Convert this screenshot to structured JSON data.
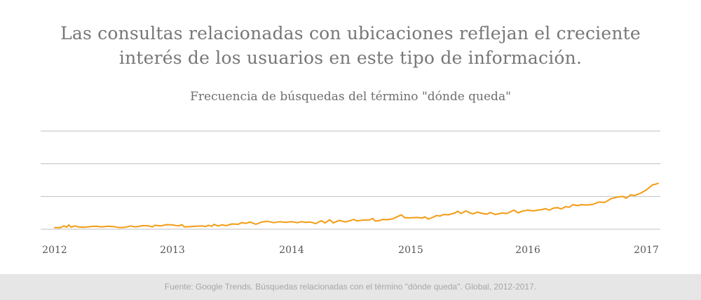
{
  "headline": {
    "line1": "Las consultas relacionadas con ubicaciones reflejan el creciente",
    "line2": "interés de los usuarios en este tipo de información."
  },
  "footer": {
    "source": "Fuente: Google Trends. Búsquedas relacionadas con el término \"dónde queda\". Global, 2012-2017."
  },
  "colors": {
    "line": "#f39c12",
    "grid": "#bfbfbf",
    "text": "#777777",
    "footer_bg": "#e6e6e6"
  },
  "chart_data": {
    "type": "line",
    "title": "Frecuencia de búsquedas del término \"dónde queda\"",
    "xlabel": "",
    "ylabel": "",
    "x_tick_labels": [
      "2012",
      "2013",
      "2014",
      "2015",
      "2016",
      "2017"
    ],
    "x_range": [
      2012.0,
      2017.1
    ],
    "y_range": [
      0,
      30
    ],
    "grid": "horizontal",
    "series": [
      {
        "values": [
          [
            2012.0,
            0.5
          ],
          [
            2012.05,
            0.5
          ],
          [
            2012.08,
            1.0
          ],
          [
            2012.1,
            0.6
          ],
          [
            2012.12,
            1.3
          ],
          [
            2012.14,
            0.6
          ],
          [
            2012.17,
            1.0
          ],
          [
            2012.2,
            0.7
          ],
          [
            2012.25,
            0.6
          ],
          [
            2012.3,
            0.8
          ],
          [
            2012.35,
            0.9
          ],
          [
            2012.4,
            0.7
          ],
          [
            2012.45,
            0.9
          ],
          [
            2012.5,
            0.8
          ],
          [
            2012.55,
            0.5
          ],
          [
            2012.6,
            0.6
          ],
          [
            2012.65,
            1.0
          ],
          [
            2012.68,
            0.7
          ],
          [
            2012.72,
            0.9
          ],
          [
            2012.75,
            1.1
          ],
          [
            2012.8,
            1.0
          ],
          [
            2012.83,
            0.7
          ],
          [
            2012.85,
            1.2
          ],
          [
            2012.9,
            1.0
          ],
          [
            2012.95,
            1.4
          ],
          [
            2013.0,
            1.3
          ],
          [
            2013.05,
            1.0
          ],
          [
            2013.08,
            1.4
          ],
          [
            2013.1,
            0.7
          ],
          [
            2013.15,
            0.8
          ],
          [
            2013.2,
            0.9
          ],
          [
            2013.25,
            1.0
          ],
          [
            2013.28,
            0.8
          ],
          [
            2013.3,
            1.2
          ],
          [
            2013.33,
            0.9
          ],
          [
            2013.35,
            1.5
          ],
          [
            2013.38,
            1.0
          ],
          [
            2013.42,
            1.3
          ],
          [
            2013.45,
            1.1
          ],
          [
            2013.5,
            1.6
          ],
          [
            2013.55,
            1.5
          ],
          [
            2013.58,
            2.0
          ],
          [
            2013.62,
            1.8
          ],
          [
            2013.65,
            2.2
          ],
          [
            2013.7,
            1.5
          ],
          [
            2013.75,
            2.2
          ],
          [
            2013.8,
            2.4
          ],
          [
            2013.85,
            2.0
          ],
          [
            2013.9,
            2.3
          ],
          [
            2013.95,
            2.1
          ],
          [
            2014.0,
            2.3
          ],
          [
            2014.05,
            2.0
          ],
          [
            2014.08,
            2.3
          ],
          [
            2014.12,
            2.1
          ],
          [
            2014.15,
            2.2
          ],
          [
            2014.18,
            2.0
          ],
          [
            2014.2,
            1.7
          ],
          [
            2014.25,
            2.6
          ],
          [
            2014.28,
            1.9
          ],
          [
            2014.32,
            2.9
          ],
          [
            2014.35,
            1.9
          ],
          [
            2014.4,
            2.7
          ],
          [
            2014.45,
            2.2
          ],
          [
            2014.5,
            2.7
          ],
          [
            2014.52,
            3.0
          ],
          [
            2014.55,
            2.5
          ],
          [
            2014.6,
            2.8
          ],
          [
            2014.65,
            2.8
          ],
          [
            2014.68,
            3.3
          ],
          [
            2014.7,
            2.5
          ],
          [
            2014.73,
            2.6
          ],
          [
            2014.77,
            3.0
          ],
          [
            2014.8,
            2.9
          ],
          [
            2014.85,
            3.2
          ],
          [
            2014.88,
            3.7
          ],
          [
            2014.92,
            4.4
          ],
          [
            2014.95,
            3.5
          ],
          [
            2015.0,
            3.5
          ],
          [
            2015.05,
            3.6
          ],
          [
            2015.1,
            3.4
          ],
          [
            2015.12,
            3.8
          ],
          [
            2015.15,
            3.1
          ],
          [
            2015.2,
            3.8
          ],
          [
            2015.22,
            4.2
          ],
          [
            2015.25,
            4.0
          ],
          [
            2015.28,
            4.5
          ],
          [
            2015.32,
            4.4
          ],
          [
            2015.35,
            4.7
          ],
          [
            2015.38,
            5.0
          ],
          [
            2015.4,
            5.5
          ],
          [
            2015.43,
            4.8
          ],
          [
            2015.47,
            5.6
          ],
          [
            2015.5,
            5.1
          ],
          [
            2015.53,
            4.7
          ],
          [
            2015.57,
            5.2
          ],
          [
            2015.6,
            4.9
          ],
          [
            2015.65,
            4.6
          ],
          [
            2015.68,
            5.1
          ],
          [
            2015.72,
            4.5
          ],
          [
            2015.75,
            4.7
          ],
          [
            2015.78,
            5.0
          ],
          [
            2015.82,
            4.8
          ],
          [
            2015.85,
            5.3
          ],
          [
            2015.88,
            5.8
          ],
          [
            2015.92,
            5.0
          ],
          [
            2015.95,
            5.5
          ],
          [
            2016.0,
            5.8
          ],
          [
            2016.05,
            5.6
          ],
          [
            2016.08,
            5.8
          ],
          [
            2016.12,
            6.0
          ],
          [
            2016.15,
            6.3
          ],
          [
            2016.18,
            5.8
          ],
          [
            2016.22,
            6.5
          ],
          [
            2016.25,
            6.6
          ],
          [
            2016.28,
            6.2
          ],
          [
            2016.32,
            6.9
          ],
          [
            2016.35,
            6.7
          ],
          [
            2016.38,
            7.5
          ],
          [
            2016.42,
            7.2
          ],
          [
            2016.45,
            7.5
          ],
          [
            2016.5,
            7.4
          ],
          [
            2016.55,
            7.6
          ],
          [
            2016.6,
            8.3
          ],
          [
            2016.65,
            8.2
          ],
          [
            2016.7,
            9.3
          ],
          [
            2016.75,
            9.8
          ],
          [
            2016.8,
            10.0
          ],
          [
            2016.83,
            9.5
          ],
          [
            2016.87,
            10.5
          ],
          [
            2016.9,
            10.3
          ],
          [
            2016.95,
            11.0
          ],
          [
            2017.0,
            12.0
          ],
          [
            2017.05,
            13.5
          ],
          [
            2017.1,
            14.0
          ]
        ]
      }
    ]
  }
}
